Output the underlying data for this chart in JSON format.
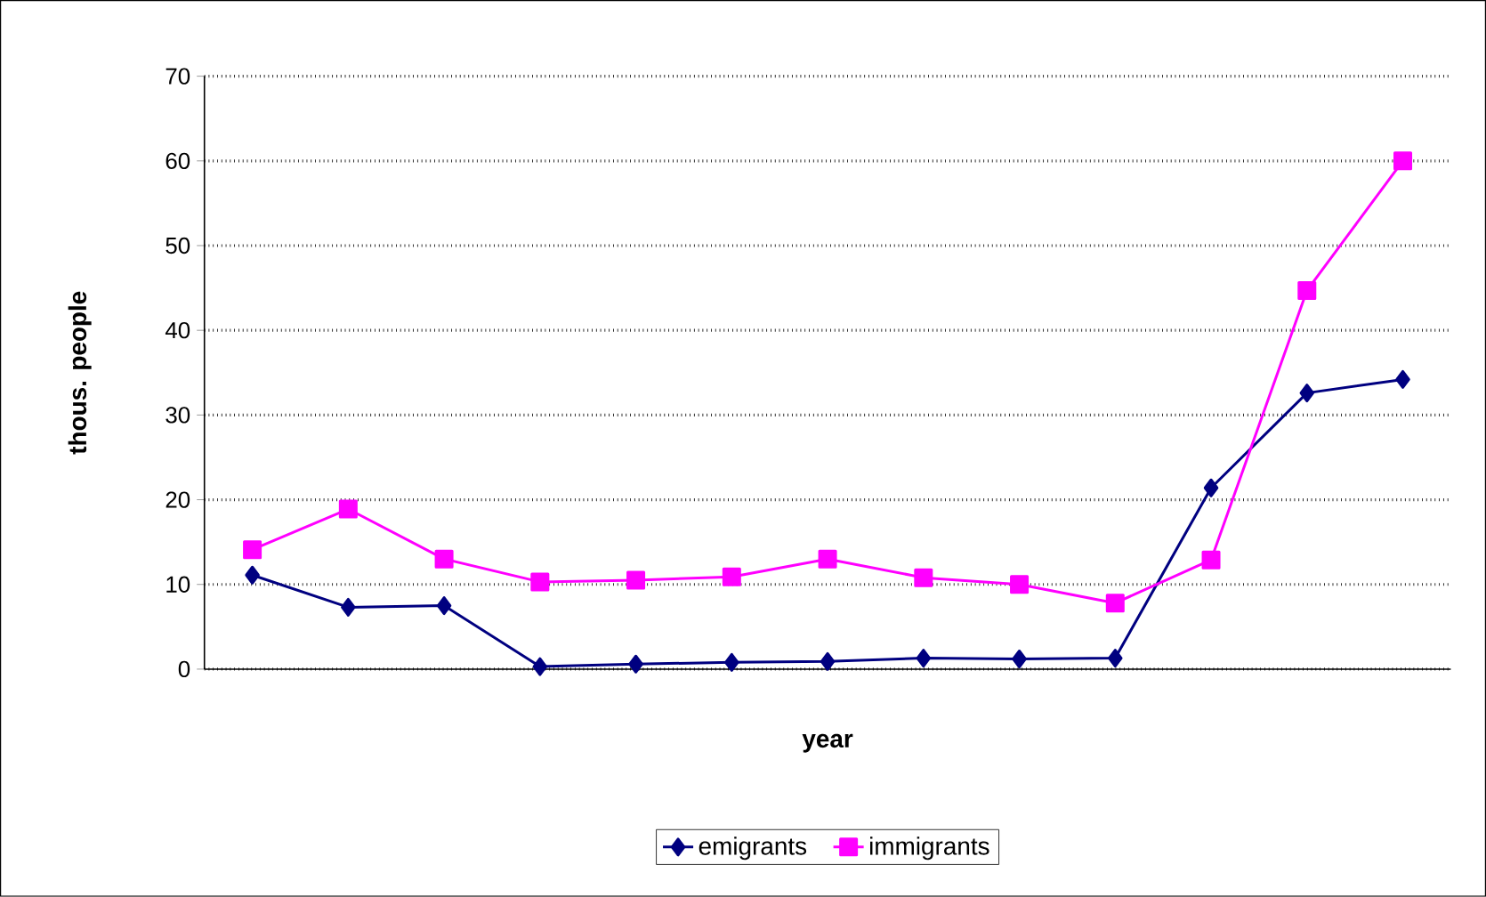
{
  "chart_data": {
    "type": "line",
    "xlabel": "year",
    "ylabel": "thous. people",
    "categories": [
      null,
      null,
      null,
      null,
      null,
      null,
      null,
      null,
      null,
      null,
      null,
      null,
      null
    ],
    "series": [
      {
        "name": "emigrants",
        "color": "#000080",
        "marker": "diamond",
        "values": [
          11.1,
          7.3,
          7.5,
          0.3,
          0.6,
          0.8,
          0.9,
          1.3,
          1.2,
          1.3,
          21.4,
          32.6,
          34.2
        ]
      },
      {
        "name": "immigrants",
        "color": "#ff00ff",
        "marker": "square",
        "values": [
          14.1,
          18.9,
          13.0,
          10.3,
          10.5,
          10.9,
          13.0,
          10.8,
          10.0,
          7.8,
          12.9,
          44.7,
          60.0
        ]
      }
    ],
    "ylim": [
      0,
      70
    ],
    "yticks": [
      0,
      10,
      20,
      30,
      40,
      50,
      60,
      70
    ],
    "grid": "y",
    "legend": "bottom"
  }
}
